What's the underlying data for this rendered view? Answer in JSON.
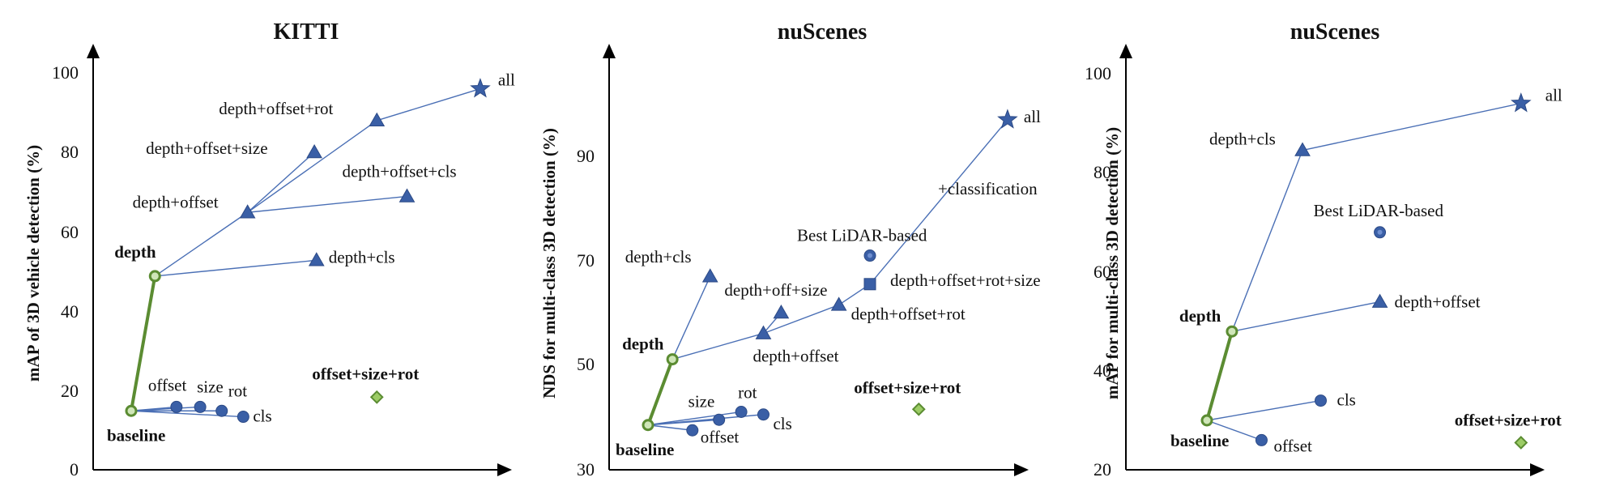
{
  "colors": {
    "marker": "#3a5fa6",
    "marker_fill_light": "#6f8fd0",
    "thin_line": "#4a6fb5",
    "green": "#5b8c32",
    "green_diamond_fill": "#9ccc65",
    "axis": "#000000"
  },
  "chart_data": [
    {
      "type": "scatter",
      "title": "KITTI",
      "xlabel": "",
      "ylabel": "mAP of 3D vehicle detection (%)",
      "ylim": [
        0,
        100
      ],
      "yticks": [
        0,
        20,
        40,
        60,
        80,
        100
      ],
      "points": [
        {
          "id": "baseline",
          "label": "baseline",
          "x": 0,
          "y": 15,
          "marker": "ring-green",
          "bold": true
        },
        {
          "id": "offset",
          "label": "offset",
          "x": 1.05,
          "y": 16,
          "marker": "circle"
        },
        {
          "id": "size",
          "label": "size",
          "x": 1.6,
          "y": 16,
          "marker": "circle"
        },
        {
          "id": "rot",
          "label": "rot",
          "x": 2.1,
          "y": 15,
          "marker": "circle"
        },
        {
          "id": "cls",
          "label": "cls",
          "x": 2.6,
          "y": 13.5,
          "marker": "circle"
        },
        {
          "id": "depth",
          "label": "depth",
          "x": 0.55,
          "y": 49,
          "marker": "ring-green",
          "bold": true
        },
        {
          "id": "depth_cls",
          "label": "depth+cls",
          "x": 4.3,
          "y": 53,
          "marker": "triangle"
        },
        {
          "id": "depth_offset",
          "label": "depth+offset",
          "x": 2.7,
          "y": 65,
          "marker": "triangle"
        },
        {
          "id": "depth_offset_size",
          "label": "depth+offset+size",
          "x": 4.25,
          "y": 80,
          "marker": "triangle"
        },
        {
          "id": "depth_offset_cls",
          "label": "depth+offset+cls",
          "x": 6.4,
          "y": 69,
          "marker": "triangle"
        },
        {
          "id": "depth_offset_rot",
          "label": "depth+offset+rot",
          "x": 5.7,
          "y": 88,
          "marker": "triangle"
        },
        {
          "id": "all",
          "label": "all",
          "x": 8.1,
          "y": 96,
          "marker": "star"
        },
        {
          "id": "osr",
          "label": "offset+size+rot",
          "x": 5.7,
          "y": 18.5,
          "marker": "diamond",
          "bold": true
        }
      ],
      "edges": [
        {
          "from": "baseline",
          "to": "depth",
          "style": "green"
        },
        {
          "from": "baseline",
          "to": "offset",
          "style": "thin"
        },
        {
          "from": "baseline",
          "to": "size",
          "style": "thin"
        },
        {
          "from": "baseline",
          "to": "rot",
          "style": "thin"
        },
        {
          "from": "baseline",
          "to": "cls",
          "style": "thin"
        },
        {
          "from": "depth",
          "to": "depth_offset",
          "style": "thin"
        },
        {
          "from": "depth",
          "to": "depth_cls",
          "style": "thin"
        },
        {
          "from": "depth_offset",
          "to": "depth_offset_size",
          "style": "thin"
        },
        {
          "from": "depth_offset",
          "to": "depth_offset_cls",
          "style": "thin"
        },
        {
          "from": "depth_offset",
          "to": "depth_offset_rot",
          "style": "thin"
        },
        {
          "from": "depth_offset_rot",
          "to": "all",
          "style": "thin"
        }
      ]
    },
    {
      "type": "scatter",
      "title": "nuScenes",
      "xlabel": "",
      "ylabel": "NDS for multi-class 3D detection (%)",
      "ylim": [
        30,
        110
      ],
      "yticks": [
        30,
        50,
        70,
        90
      ],
      "points": [
        {
          "id": "baseline",
          "label": "baseline",
          "x": 0,
          "y": 38.5,
          "marker": "ring-green",
          "bold": true
        },
        {
          "id": "offset",
          "label": "offset",
          "x": 1.0,
          "y": 37.5,
          "marker": "circle"
        },
        {
          "id": "size",
          "label": "size",
          "x": 1.6,
          "y": 39.5,
          "marker": "circle"
        },
        {
          "id": "rot",
          "label": "rot",
          "x": 2.1,
          "y": 41,
          "marker": "circle"
        },
        {
          "id": "cls",
          "label": "cls",
          "x": 2.6,
          "y": 40.5,
          "marker": "circle"
        },
        {
          "id": "depth",
          "label": "depth",
          "x": 0.55,
          "y": 51,
          "marker": "ring-green",
          "bold": true
        },
        {
          "id": "depth_cls",
          "label": "depth+cls",
          "x": 1.4,
          "y": 67,
          "marker": "triangle"
        },
        {
          "id": "depth_offset",
          "label": "depth+offset",
          "x": 2.6,
          "y": 56,
          "marker": "triangle"
        },
        {
          "id": "depth_off_size",
          "label": "depth+off+size",
          "x": 3.0,
          "y": 60,
          "marker": "triangle"
        },
        {
          "id": "depth_offset_rot",
          "label": "depth+offset+rot",
          "x": 4.3,
          "y": 61.5,
          "marker": "triangle"
        },
        {
          "id": "depth_offset_rot_size",
          "label": "depth+offset+rot+size",
          "x": 5.0,
          "y": 65.5,
          "marker": "square"
        },
        {
          "id": "lidar",
          "label": "Best LiDAR-based",
          "x": 5.0,
          "y": 71,
          "marker": "circle-ring"
        },
        {
          "id": "all",
          "label": "all",
          "x": 8.1,
          "y": 97,
          "marker": "star"
        },
        {
          "id": "osr",
          "label": "offset+size+rot",
          "x": 6.1,
          "y": 41.5,
          "marker": "diamond",
          "bold": true
        }
      ],
      "edges": [
        {
          "from": "baseline",
          "to": "depth",
          "style": "green"
        },
        {
          "from": "baseline",
          "to": "offset",
          "style": "thin"
        },
        {
          "from": "baseline",
          "to": "size",
          "style": "thin"
        },
        {
          "from": "baseline",
          "to": "rot",
          "style": "thin"
        },
        {
          "from": "baseline",
          "to": "cls",
          "style": "thin"
        },
        {
          "from": "depth",
          "to": "depth_cls",
          "style": "thin"
        },
        {
          "from": "depth",
          "to": "depth_offset",
          "style": "thin"
        },
        {
          "from": "depth_offset",
          "to": "depth_off_size",
          "style": "thin"
        },
        {
          "from": "depth_offset",
          "to": "depth_offset_rot",
          "style": "thin"
        },
        {
          "from": "depth_offset_rot",
          "to": "depth_offset_rot_size",
          "style": "thin"
        },
        {
          "from": "depth_offset_rot_size",
          "to": "all",
          "style": "thin"
        }
      ],
      "annotations": [
        {
          "text": "+classification"
        }
      ]
    },
    {
      "type": "scatter",
      "title": "nuScenes",
      "xlabel": "",
      "ylabel": "mAP for multi-class 3D detection (%)",
      "ylim": [
        20,
        100
      ],
      "yticks": [
        20,
        40,
        60,
        80,
        100
      ],
      "points": [
        {
          "id": "baseline",
          "label": "baseline",
          "x": 0,
          "y": 30,
          "marker": "ring-green",
          "bold": true
        },
        {
          "id": "offset",
          "label": "offset",
          "x": 1.2,
          "y": 26,
          "marker": "circle"
        },
        {
          "id": "cls",
          "label": "cls",
          "x": 2.5,
          "y": 34,
          "marker": "circle"
        },
        {
          "id": "depth",
          "label": "depth",
          "x": 0.55,
          "y": 48,
          "marker": "ring-green",
          "bold": true
        },
        {
          "id": "depth_offset",
          "label": "depth+offset",
          "x": 3.8,
          "y": 54,
          "marker": "triangle"
        },
        {
          "id": "depth_cls",
          "label": "depth+cls",
          "x": 2.1,
          "y": 84.5,
          "marker": "triangle"
        },
        {
          "id": "lidar",
          "label": "Best LiDAR-based",
          "x": 3.8,
          "y": 68,
          "marker": "circle-ring"
        },
        {
          "id": "all",
          "label": "all",
          "x": 6.9,
          "y": 94,
          "marker": "star"
        },
        {
          "id": "osr",
          "label": "offset+size+rot",
          "x": 6.9,
          "y": 25.5,
          "marker": "diamond",
          "bold": true
        }
      ],
      "edges": [
        {
          "from": "baseline",
          "to": "depth",
          "style": "green"
        },
        {
          "from": "baseline",
          "to": "offset",
          "style": "thin"
        },
        {
          "from": "baseline",
          "to": "cls",
          "style": "thin"
        },
        {
          "from": "depth",
          "to": "depth_cls",
          "style": "thin"
        },
        {
          "from": "depth",
          "to": "depth_offset",
          "style": "thin"
        },
        {
          "from": "depth_cls",
          "to": "all",
          "style": "thin"
        }
      ]
    }
  ]
}
